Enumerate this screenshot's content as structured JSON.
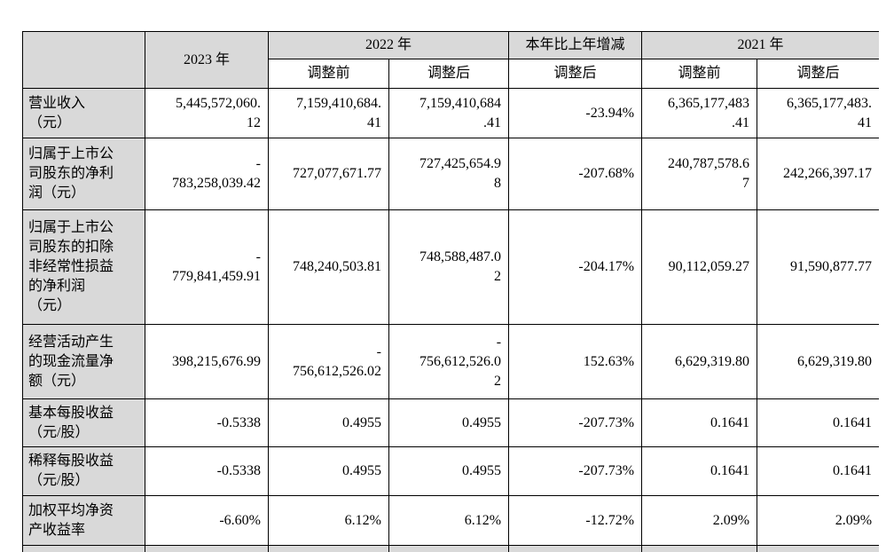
{
  "header": {
    "col_2023": "2023 年",
    "col_2022": "2022 年",
    "col_change": "本年比上年增减",
    "col_2021": "2021 年",
    "sub": [
      "调整前",
      "调整后",
      "调整后",
      "调整前",
      "调整后"
    ]
  },
  "rows": [
    {
      "label": [
        "营业收入",
        "（元）"
      ],
      "cells": [
        [
          "5,445,572,060.",
          "12"
        ],
        [
          "7,159,410,684.",
          "41"
        ],
        [
          "7,159,410,684",
          ".41"
        ],
        "-23.94%",
        [
          "6,365,177,483",
          ".41"
        ],
        [
          "6,365,177,483.",
          "41"
        ]
      ]
    },
    {
      "label": [
        "归属于上市公",
        "司股东的净利",
        "润（元）"
      ],
      "cells": [
        [
          "-",
          "783,258,039.42"
        ],
        "727,077,671.77",
        [
          "727,425,654.9",
          "8"
        ],
        "-207.68%",
        [
          "240,787,578.6",
          "7"
        ],
        "242,266,397.17"
      ]
    },
    {
      "label": [
        "归属于上市公",
        "司股东的扣除",
        "非经常性损益",
        "的净利润",
        "（元）"
      ],
      "cells": [
        [
          "-",
          "779,841,459.91"
        ],
        "748,240,503.81",
        [
          "748,588,487.0",
          "2"
        ],
        "-204.17%",
        "90,112,059.27",
        "91,590,877.77"
      ]
    },
    {
      "label": [
        "经营活动产生",
        "的现金流量净",
        "额（元）"
      ],
      "cells": [
        "398,215,676.99",
        [
          "-",
          "756,612,526.02"
        ],
        [
          "-",
          "756,612,526.0",
          "2"
        ],
        "152.63%",
        "6,629,319.80",
        "6,629,319.80"
      ]
    },
    {
      "label": [
        "基本每股收益",
        "（元/股）"
      ],
      "cells": [
        "-0.5338",
        "0.4955",
        "0.4955",
        "-207.73%",
        "0.1641",
        "0.1641"
      ]
    },
    {
      "label": [
        "稀释每股收益",
        "（元/股）"
      ],
      "cells": [
        "-0.5338",
        "0.4955",
        "0.4955",
        "-207.73%",
        "0.1641",
        "0.1641"
      ]
    },
    {
      "label": [
        "加权平均净资",
        "产收益率"
      ],
      "cells": [
        "-6.60%",
        "6.12%",
        "6.12%",
        "-12.72%",
        "2.09%",
        "2.09%"
      ]
    }
  ]
}
